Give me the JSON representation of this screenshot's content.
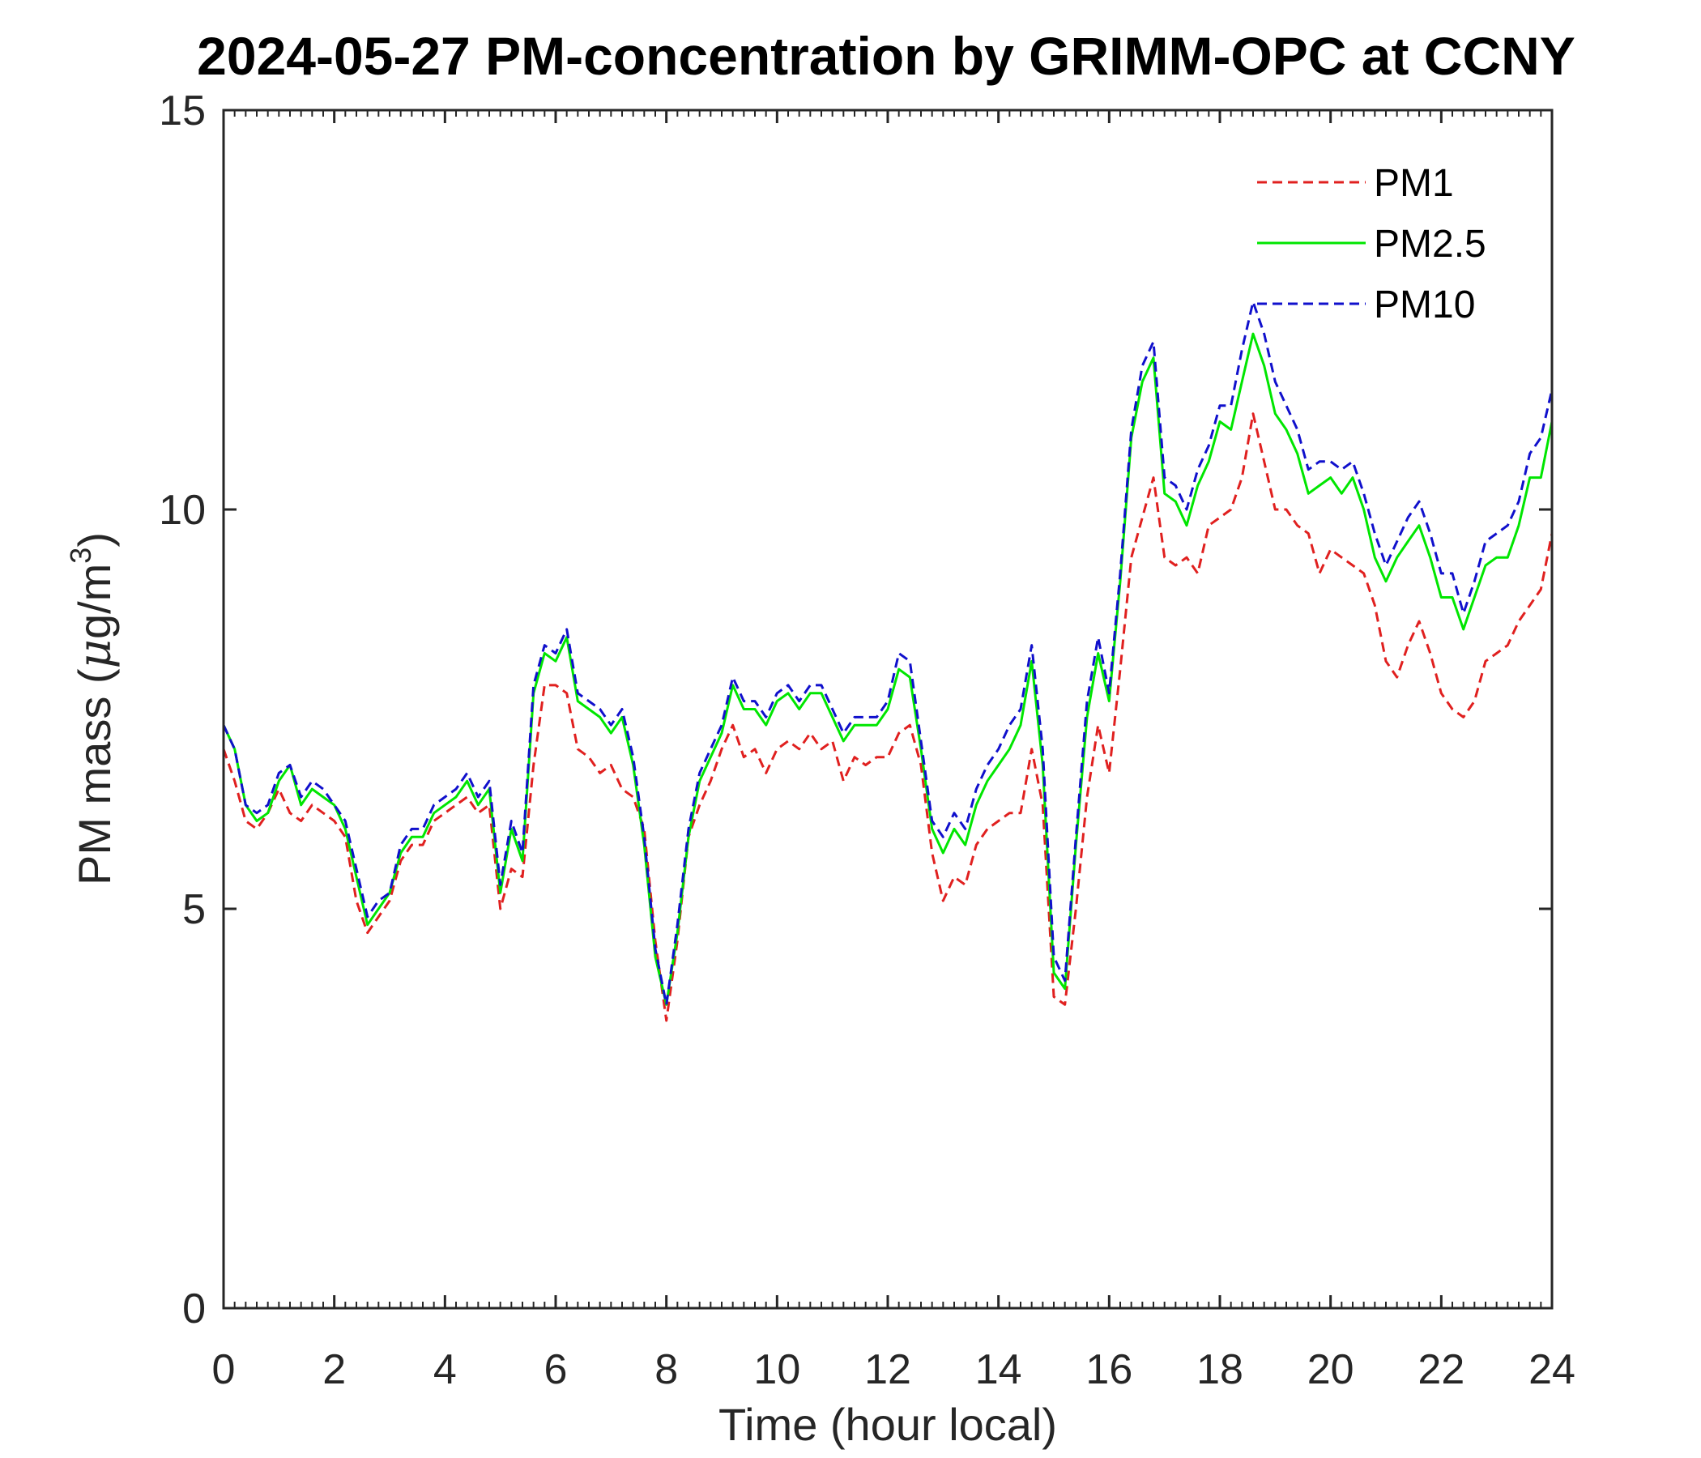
{
  "chart_data": {
    "type": "line",
    "title": "2024-05-27 PM-concentration by GRIMM-OPC at CCNY",
    "xlabel": "Time (hour local)",
    "ylabel_prefix": "PM mass (",
    "ylabel_mu": "μ",
    "ylabel_unit": "g/m",
    "ylabel_sup": "3",
    "ylabel_suffix": ")",
    "xlim": [
      0,
      24
    ],
    "ylim": [
      0,
      15
    ],
    "xticks": [
      0,
      2,
      4,
      6,
      8,
      10,
      12,
      14,
      16,
      18,
      20,
      22,
      24
    ],
    "xtick_labels": [
      "0",
      "2",
      "4",
      "6",
      "8",
      "10",
      "12",
      "14",
      "16",
      "18",
      "20",
      "22",
      "24"
    ],
    "yticks": [
      0,
      5,
      10,
      15
    ],
    "ytick_labels": [
      "0",
      "5",
      "10",
      "15"
    ],
    "grid": false,
    "legend_position": "top-right",
    "x": [
      0,
      0.2,
      0.4,
      0.6,
      0.8,
      1,
      1.2,
      1.4,
      1.6,
      1.8,
      2,
      2.2,
      2.4,
      2.6,
      2.8,
      3,
      3.2,
      3.4,
      3.6,
      3.8,
      4,
      4.2,
      4.4,
      4.6,
      4.8,
      5,
      5.2,
      5.4,
      5.6,
      5.8,
      6,
      6.2,
      6.4,
      6.6,
      6.8,
      7,
      7.2,
      7.4,
      7.6,
      7.8,
      8,
      8.2,
      8.4,
      8.6,
      8.8,
      9,
      9.2,
      9.4,
      9.6,
      9.8,
      10,
      10.2,
      10.4,
      10.6,
      10.8,
      11,
      11.2,
      11.4,
      11.6,
      11.8,
      12,
      12.2,
      12.4,
      12.6,
      12.8,
      13,
      13.2,
      13.4,
      13.6,
      13.8,
      14,
      14.2,
      14.4,
      14.6,
      14.8,
      15,
      15.2,
      15.4,
      15.6,
      15.8,
      16,
      16.2,
      16.4,
      16.6,
      16.8,
      17,
      17.2,
      17.4,
      17.6,
      17.8,
      18,
      18.2,
      18.4,
      18.6,
      18.8,
      19,
      19.2,
      19.4,
      19.6,
      19.8,
      20,
      20.2,
      20.4,
      20.6,
      20.8,
      21,
      21.2,
      21.4,
      21.6,
      21.8,
      22,
      22.2,
      22.4,
      22.6,
      22.8,
      23,
      23.2,
      23.4,
      23.6,
      23.8,
      24
    ],
    "series": [
      {
        "name": "PM1",
        "color": "#e0201f",
        "dash": "dashed",
        "values": [
          7.0,
          6.6,
          6.1,
          6.0,
          6.2,
          6.5,
          6.2,
          6.1,
          6.3,
          6.2,
          6.1,
          5.9,
          5.1,
          4.7,
          4.9,
          5.1,
          5.6,
          5.8,
          5.8,
          6.1,
          6.2,
          6.3,
          6.4,
          6.2,
          6.3,
          5.0,
          5.5,
          5.4,
          6.8,
          7.8,
          7.8,
          7.7,
          7.0,
          6.9,
          6.7,
          6.8,
          6.5,
          6.4,
          6.0,
          4.6,
          3.6,
          4.6,
          5.9,
          6.3,
          6.6,
          7.0,
          7.3,
          6.9,
          7.0,
          6.7,
          7.0,
          7.1,
          7.0,
          7.2,
          7.0,
          7.1,
          6.6,
          6.9,
          6.8,
          6.9,
          6.9,
          7.2,
          7.3,
          6.8,
          5.7,
          5.1,
          5.4,
          5.3,
          5.8,
          6.0,
          6.1,
          6.2,
          6.2,
          7.0,
          6.3,
          3.9,
          3.8,
          5.0,
          6.4,
          7.3,
          6.7,
          8.0,
          9.4,
          9.9,
          10.4,
          9.4,
          9.3,
          9.4,
          9.2,
          9.8,
          9.9,
          10.0,
          10.4,
          11.2,
          10.6,
          10.0,
          10.0,
          9.8,
          9.7,
          9.2,
          9.5,
          9.4,
          9.3,
          9.2,
          8.8,
          8.1,
          7.9,
          8.3,
          8.6,
          8.2,
          7.7,
          7.5,
          7.4,
          7.6,
          8.1,
          8.2,
          8.3,
          8.6,
          8.8,
          9.0,
          9.7
        ]
      },
      {
        "name": "PM2.5",
        "color": "#00e600",
        "dash": "solid",
        "values": [
          7.3,
          7.0,
          6.3,
          6.1,
          6.2,
          6.6,
          6.8,
          6.3,
          6.5,
          6.4,
          6.3,
          6.0,
          5.4,
          4.8,
          5.0,
          5.2,
          5.7,
          5.9,
          5.9,
          6.2,
          6.3,
          6.4,
          6.6,
          6.3,
          6.5,
          5.2,
          6.0,
          5.6,
          7.7,
          8.2,
          8.1,
          8.4,
          7.6,
          7.5,
          7.4,
          7.2,
          7.4,
          6.8,
          5.8,
          4.4,
          3.8,
          4.7,
          5.9,
          6.6,
          6.9,
          7.2,
          7.8,
          7.5,
          7.5,
          7.3,
          7.6,
          7.7,
          7.5,
          7.7,
          7.7,
          7.4,
          7.1,
          7.3,
          7.3,
          7.3,
          7.5,
          8.0,
          7.9,
          7.0,
          6.0,
          5.7,
          6.0,
          5.8,
          6.3,
          6.6,
          6.8,
          7.0,
          7.3,
          8.1,
          6.8,
          4.2,
          4.0,
          5.8,
          7.4,
          8.2,
          7.6,
          9.1,
          10.9,
          11.6,
          11.9,
          10.2,
          10.1,
          9.8,
          10.3,
          10.6,
          11.1,
          11.0,
          11.6,
          12.2,
          11.8,
          11.2,
          11.0,
          10.7,
          10.2,
          10.3,
          10.4,
          10.2,
          10.4,
          10.0,
          9.4,
          9.1,
          9.4,
          9.6,
          9.8,
          9.4,
          8.9,
          8.9,
          8.5,
          8.9,
          9.3,
          9.4,
          9.4,
          9.8,
          10.4,
          10.4,
          11.1
        ]
      },
      {
        "name": "PM10",
        "color": "#1010cc",
        "dash": "dashed",
        "values": [
          7.3,
          7.0,
          6.3,
          6.2,
          6.3,
          6.7,
          6.8,
          6.4,
          6.6,
          6.5,
          6.3,
          6.1,
          5.5,
          4.9,
          5.1,
          5.2,
          5.8,
          6.0,
          6.0,
          6.3,
          6.4,
          6.5,
          6.7,
          6.4,
          6.6,
          5.3,
          6.1,
          5.7,
          7.8,
          8.3,
          8.2,
          8.5,
          7.7,
          7.6,
          7.5,
          7.3,
          7.5,
          6.9,
          5.9,
          4.5,
          3.8,
          4.8,
          6.0,
          6.7,
          7.0,
          7.3,
          7.9,
          7.6,
          7.6,
          7.4,
          7.7,
          7.8,
          7.6,
          7.8,
          7.8,
          7.5,
          7.2,
          7.4,
          7.4,
          7.4,
          7.6,
          8.2,
          8.1,
          7.1,
          6.1,
          5.9,
          6.2,
          6.0,
          6.5,
          6.8,
          7.0,
          7.3,
          7.5,
          8.3,
          7.0,
          4.4,
          4.1,
          5.9,
          7.6,
          8.4,
          7.7,
          9.2,
          11.0,
          11.8,
          12.1,
          10.4,
          10.3,
          10.0,
          10.5,
          10.8,
          11.3,
          11.3,
          12.0,
          12.6,
          12.2,
          11.6,
          11.3,
          11.0,
          10.5,
          10.6,
          10.6,
          10.5,
          10.6,
          10.2,
          9.7,
          9.3,
          9.6,
          9.9,
          10.1,
          9.7,
          9.2,
          9.2,
          8.7,
          9.1,
          9.6,
          9.7,
          9.8,
          10.1,
          10.7,
          10.9,
          11.5
        ]
      }
    ]
  }
}
